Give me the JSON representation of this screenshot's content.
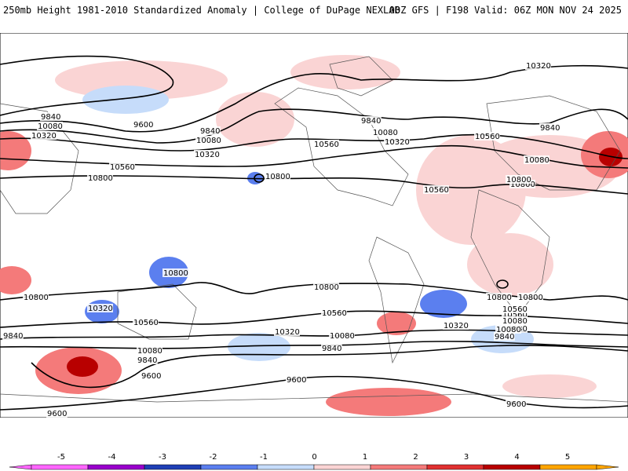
{
  "header": {
    "left": "250mb Height 1981-2010 Standardized Anomaly | College of DuPage NEXLAB",
    "right": "00Z GFS | F198 Valid: 06Z MON NOV 24 2025"
  },
  "colors": {
    "neg5": "#ff66ff",
    "neg4": "#9900cc",
    "neg3": "#1f3fb5",
    "neg2": "#5b7fef",
    "neg1": "#c6dcfa",
    "zero": "#ffffff",
    "pos1": "#fad4d4",
    "pos2": "#f47a7a",
    "pos3": "#e03030",
    "pos4": "#b80000",
    "pos5": "#ffa500",
    "contour": "#000000",
    "coast": "#555555"
  },
  "contour_labels": [
    "9840",
    "10080",
    "10320",
    "9600",
    "9840",
    "10080",
    "10320",
    "10560",
    "10800",
    "10800",
    "10560",
    "9840",
    "10080",
    "10320",
    "10560",
    "10800",
    "10560",
    "10080",
    "10320",
    "9840",
    "10800",
    "10800",
    "10800",
    "10320",
    "10560",
    "10800",
    "9840",
    "10560",
    "10320",
    "10080",
    "10080",
    "9840",
    "9600",
    "10800",
    "10560",
    "10320",
    "10080",
    "9840",
    "9600",
    "9600",
    "9840",
    "10080",
    "9600",
    "10800",
    "10560",
    "10080"
  ],
  "colorbar": {
    "ticks": [
      "-5",
      "-4",
      "-3",
      "-2",
      "-1",
      "0",
      "1",
      "2",
      "3",
      "4",
      "5"
    ]
  }
}
